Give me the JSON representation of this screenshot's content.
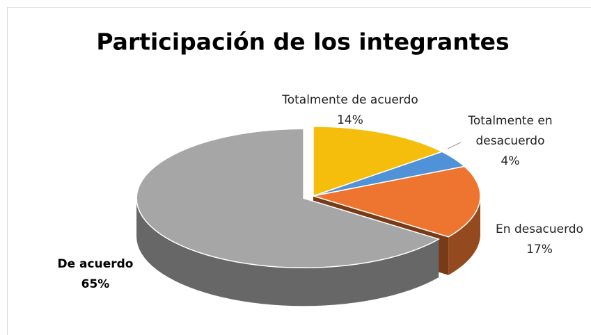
{
  "chart_data": {
    "type": "pie3d",
    "title": "Participación de los integrantes",
    "categories": [
      "Totalmente de acuerdo",
      "Totalmente en desacuerdo",
      "En desacuerdo",
      "De acuerdo"
    ],
    "values": [
      14,
      4,
      17,
      65
    ],
    "value_labels": [
      "14%",
      "4%",
      "17%",
      "65%"
    ],
    "colors": [
      "#f5bd0c",
      "#4f92d8",
      "#ee7530",
      "#a6a6a6"
    ]
  }
}
